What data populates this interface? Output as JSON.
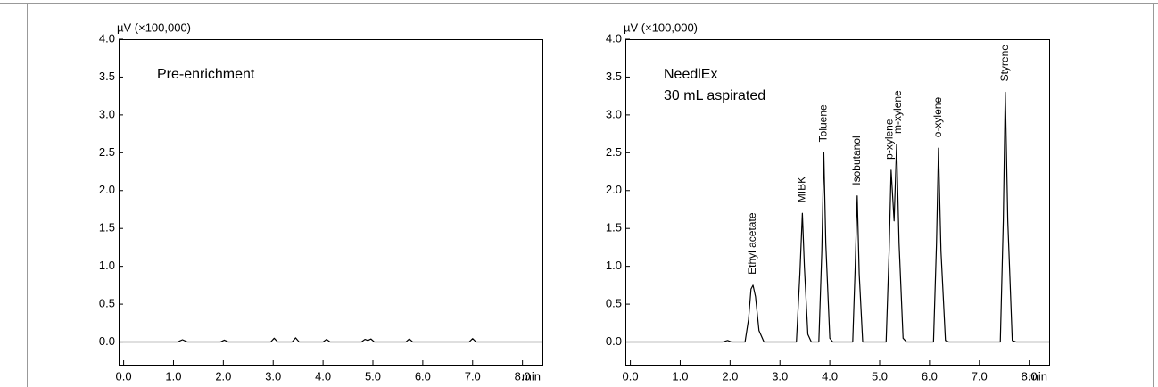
{
  "chart_data": [
    {
      "type": "line",
      "y_label": "µV (×100,000)",
      "x_label": "min",
      "text": [
        "Pre-enrichment"
      ],
      "x": [
        -0.1,
        1.08,
        1.18,
        1.28,
        1.94,
        2.02,
        2.1,
        2.95,
        3.02,
        3.09,
        3.38,
        3.45,
        3.52,
        4.0,
        4.07,
        4.14,
        4.77,
        4.84,
        4.9,
        4.96,
        5.03,
        5.66,
        5.73,
        5.8,
        6.93,
        7.0,
        7.07,
        8.4
      ],
      "series": [
        {
          "color": "#000000",
          "values": [
            0,
            0,
            0.03,
            0,
            0,
            0.025,
            0,
            0,
            0.05,
            0,
            0,
            0.055,
            0,
            0,
            0.035,
            0,
            0,
            0.035,
            0.02,
            0.04,
            0,
            0,
            0.04,
            0,
            0,
            0.045,
            0,
            0
          ]
        }
      ],
      "xlim": [
        -0.1,
        8.4
      ],
      "ylim": [
        -0.3,
        4.0
      ],
      "xticks": [
        {
          "value": 0,
          "label": "0.0"
        },
        {
          "value": 1,
          "label": "1.0"
        },
        {
          "value": 2,
          "label": "2.0"
        },
        {
          "value": 3,
          "label": "3.0"
        },
        {
          "value": 4,
          "label": "4.0"
        },
        {
          "value": 5,
          "label": "5.0"
        },
        {
          "value": 6,
          "label": "6.0"
        },
        {
          "value": 7,
          "label": "7.0"
        },
        {
          "value": 8,
          "label": "8.0"
        }
      ],
      "yticks": [
        {
          "value": 0,
          "label": "0.0"
        },
        0.5,
        {
          "value": 1,
          "label": "1.0"
        },
        1.5,
        {
          "value": 2,
          "label": "2.0"
        },
        2.5,
        {
          "value": 3,
          "label": "3.0"
        },
        3.5,
        {
          "value": 4,
          "label": "4.0"
        }
      ]
    },
    {
      "type": "line",
      "y_label": "µV (×100,000)",
      "x_label": "min",
      "text": [
        "NeedlEx",
        "30 mL aspirated"
      ],
      "x": [
        -0.1,
        1.85,
        1.95,
        2.03,
        2.3,
        2.37,
        2.42,
        2.46,
        2.51,
        2.58,
        2.68,
        3.33,
        3.4,
        3.45,
        3.49,
        3.56,
        3.63,
        3.78,
        3.84,
        3.88,
        3.92,
        4.0,
        4.06,
        4.46,
        4.51,
        4.55,
        4.59,
        4.66,
        5.13,
        5.19,
        5.23,
        5.29,
        5.34,
        5.39,
        5.47,
        5.54,
        6.08,
        6.14,
        6.18,
        6.23,
        6.32,
        6.39,
        7.42,
        7.48,
        7.52,
        7.57,
        7.66,
        7.74,
        8.4
      ],
      "series": [
        {
          "color": "#000000",
          "values": [
            0,
            0,
            0.02,
            0,
            0,
            0.3,
            0.7,
            0.75,
            0.6,
            0.15,
            0,
            0,
            0.9,
            1.7,
            1.0,
            0.1,
            0,
            0,
            1.2,
            2.5,
            1.3,
            0.05,
            0,
            0,
            1.0,
            1.93,
            0.9,
            0,
            0,
            1.2,
            2.27,
            1.6,
            2.61,
            1.3,
            0.05,
            0,
            0,
            1.3,
            2.56,
            1.2,
            0.02,
            0,
            0,
            1.6,
            3.3,
            1.6,
            0.02,
            0,
            0
          ]
        }
      ],
      "peak_labels": [
        {
          "label": "Ethyl acetate",
          "time": 2.46,
          "height": 0.75
        },
        {
          "label": "MIBK",
          "time": 3.45,
          "height": 1.7
        },
        {
          "label": "Toluene",
          "time": 3.88,
          "height": 2.5
        },
        {
          "label": "Isobutanol",
          "time": 4.55,
          "height": 1.93
        },
        {
          "label": "p-xylene",
          "time": 5.2,
          "height": 2.27
        },
        {
          "label": "m-xylene",
          "time": 5.37,
          "height": 2.61
        },
        {
          "label": "o-xylene",
          "time": 6.18,
          "height": 2.56
        },
        {
          "label": "Styrene",
          "time": 7.52,
          "height": 3.3
        }
      ],
      "xlim": [
        -0.1,
        8.4
      ],
      "ylim": [
        -0.3,
        4.0
      ],
      "xticks": [
        {
          "value": 0,
          "label": "0.0"
        },
        {
          "value": 1,
          "label": "1.0"
        },
        {
          "value": 2,
          "label": "2.0"
        },
        {
          "value": 3,
          "label": "3.0"
        },
        {
          "value": 4,
          "label": "4.0"
        },
        {
          "value": 5,
          "label": "5.0"
        },
        {
          "value": 6,
          "label": "6.0"
        },
        {
          "value": 7,
          "label": "7.0"
        },
        {
          "value": 8,
          "label": "8.0"
        }
      ],
      "yticks": [
        {
          "value": 0,
          "label": "0.0"
        },
        0.5,
        {
          "value": 1,
          "label": "1.0"
        },
        1.5,
        {
          "value": 2,
          "label": "2.0"
        },
        2.5,
        {
          "value": 3,
          "label": "3.0"
        },
        3.5,
        {
          "value": 4,
          "label": "4.0"
        }
      ]
    }
  ]
}
